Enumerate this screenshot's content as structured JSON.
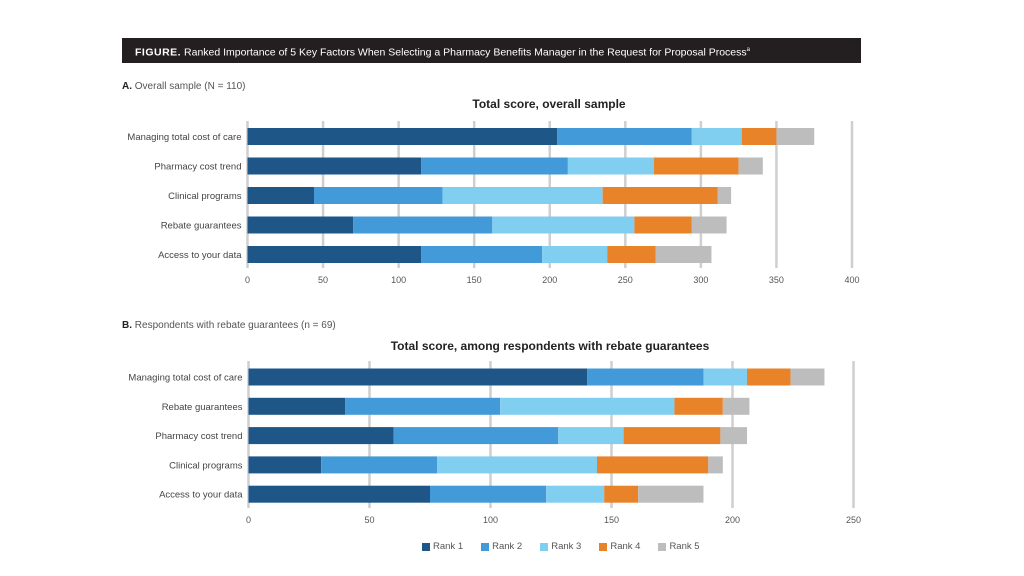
{
  "figure": {
    "label": "FIGURE.",
    "title": "Ranked Importance of 5 Key Factors When Selecting a Pharmacy Benefits Manager in the Request for Proposal Process",
    "footnote_marker": "a"
  },
  "panels": [
    {
      "letter": "A.",
      "text": "Overall sample (N = 110)"
    },
    {
      "letter": "B.",
      "text": "Respondents with rebate guarantees (n = 69)"
    }
  ],
  "legend": [
    {
      "label": "Rank 1",
      "color": "#1f5688"
    },
    {
      "label": "Rank 2",
      "color": "#429bd8"
    },
    {
      "label": "Rank 3",
      "color": "#80cef0"
    },
    {
      "label": "Rank 4",
      "color": "#e8832a"
    },
    {
      "label": "Rank 5",
      "color": "#bdbdbd"
    }
  ],
  "chart_data": [
    {
      "type": "bar",
      "orientation": "horizontal",
      "stacked": true,
      "title": "Total score, overall sample",
      "xlabel": "",
      "ylabel": "",
      "xlim": [
        0,
        400
      ],
      "xticks": [
        0,
        50,
        100,
        150,
        200,
        250,
        300,
        350,
        400
      ],
      "grid": true,
      "legend_position": "bottom",
      "categories": [
        "Managing total cost of care",
        "Pharmacy cost trend",
        "Clinical programs",
        "Rebate guarantees",
        "Access to your data"
      ],
      "series": [
        {
          "name": "Rank 1",
          "values": [
            205,
            115,
            44,
            70,
            115
          ]
        },
        {
          "name": "Rank 2",
          "values": [
            89,
            97,
            85,
            92,
            80
          ]
        },
        {
          "name": "Rank 3",
          "values": [
            33,
            57,
            106,
            94,
            43
          ]
        },
        {
          "name": "Rank 4",
          "values": [
            23,
            56,
            76,
            38,
            32
          ]
        },
        {
          "name": "Rank 5",
          "values": [
            25,
            16,
            9,
            23,
            37
          ]
        }
      ]
    },
    {
      "type": "bar",
      "orientation": "horizontal",
      "stacked": true,
      "title": "Total score, among respondents with rebate guarantees",
      "xlabel": "",
      "ylabel": "",
      "xlim": [
        0,
        250
      ],
      "xticks": [
        0,
        50,
        100,
        150,
        200,
        250
      ],
      "grid": true,
      "legend_position": "bottom",
      "categories": [
        "Managing total cost of care",
        "Rebate guarantees",
        "Pharmacy cost trend",
        "Clinical programs",
        "Access to your data"
      ],
      "series": [
        {
          "name": "Rank 1",
          "values": [
            140,
            40,
            60,
            30,
            75
          ]
        },
        {
          "name": "Rank 2",
          "values": [
            48,
            64,
            68,
            48,
            48
          ]
        },
        {
          "name": "Rank 3",
          "values": [
            18,
            72,
            27,
            66,
            24
          ]
        },
        {
          "name": "Rank 4",
          "values": [
            18,
            20,
            40,
            46,
            14
          ]
        },
        {
          "name": "Rank 5",
          "values": [
            14,
            11,
            11,
            6,
            27
          ]
        }
      ]
    }
  ]
}
